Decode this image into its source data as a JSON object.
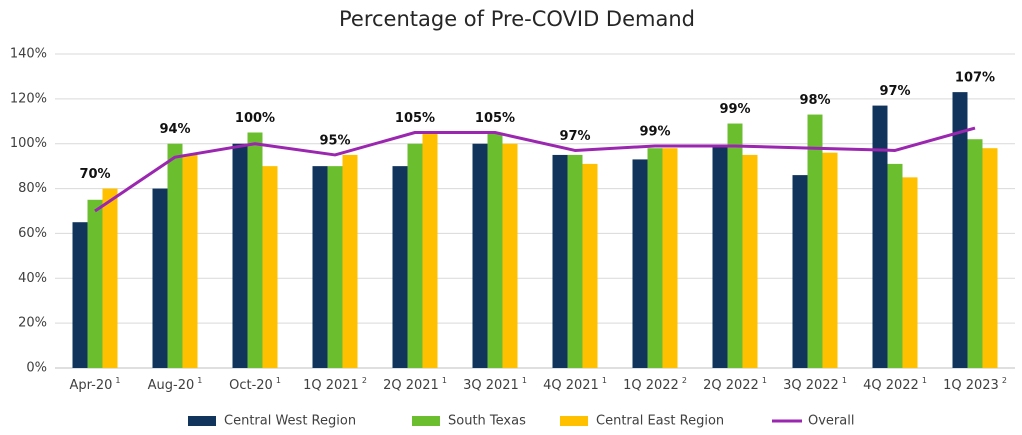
{
  "chart_data": {
    "type": "bar",
    "title": "Percentage of Pre-COVID Demand",
    "categories": [
      "Apr-20",
      "Aug-20",
      "Oct-20",
      "1Q 2021",
      "2Q 2021",
      "3Q 2021",
      "4Q 2021",
      "1Q 2022",
      "2Q 2022",
      "3Q 2022",
      "4Q 2022",
      "1Q 2023"
    ],
    "footnotes": [
      "1",
      "1",
      "1",
      "2",
      "1",
      "1",
      "1",
      "2",
      "1",
      "1",
      "1",
      "2"
    ],
    "series": [
      {
        "name": "Central West Region",
        "color": "#10345c",
        "values": [
          65,
          80,
          100,
          90,
          90,
          100,
          95,
          93,
          99,
          86,
          117,
          123
        ]
      },
      {
        "name": "South Texas",
        "color": "#6bbf2f",
        "values": [
          75,
          100,
          105,
          90,
          100,
          105,
          95,
          98,
          109,
          113,
          91,
          102
        ]
      },
      {
        "name": "Central East Region",
        "color": "#ffc000",
        "values": [
          80,
          95,
          90,
          95,
          105,
          100,
          91,
          98,
          95,
          96,
          85,
          98
        ]
      },
      {
        "name": "Overall",
        "color": "#9b26af",
        "type": "line",
        "values": [
          70,
          94,
          100,
          95,
          105,
          105,
          97,
          99,
          99,
          98,
          97,
          107
        ],
        "value_labels": [
          "70%",
          "94%",
          "100%",
          "95%",
          "105%",
          "105%",
          "97%",
          "99%",
          "99%",
          "98%",
          "97%",
          "107%"
        ]
      }
    ],
    "ylim": [
      0,
      140
    ],
    "yticks": [
      {
        "value": 0,
        "label": "0%"
      },
      {
        "value": 20,
        "label": "20%"
      },
      {
        "value": 40,
        "label": "40%"
      },
      {
        "value": 60,
        "label": "60%"
      },
      {
        "value": 80,
        "label": "80%"
      },
      {
        "value": 100,
        "label": "100%"
      },
      {
        "value": 120,
        "label": "120%"
      },
      {
        "value": 140,
        "label": "140%"
      }
    ],
    "grid": true
  }
}
